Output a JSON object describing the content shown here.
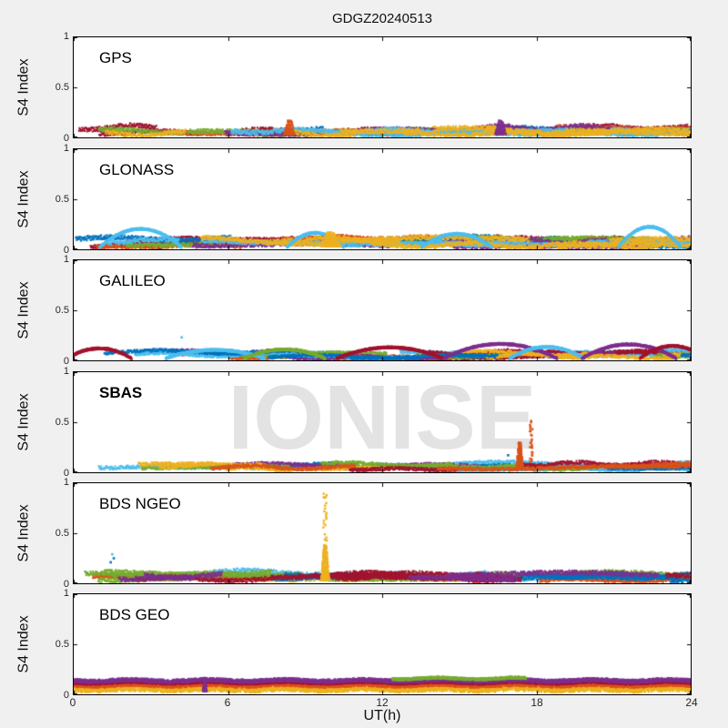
{
  "figure": {
    "title": "GDGZ20240513",
    "xlabel": "UT(h)",
    "ylabel": "S4 Index",
    "watermark": "IONISE",
    "x_ticks": [
      0,
      6,
      12,
      18,
      24
    ],
    "y_ticks": [
      0,
      0.5,
      1
    ],
    "x_tick_labels": [
      "0",
      "6",
      "12",
      "18",
      "24"
    ],
    "y_tick_labels_top_to_bottom": [
      "1",
      "0.5",
      "0"
    ],
    "colors": {
      "figure_background": "#f0f0f0",
      "plot_background": "#ffffff",
      "axis": "#000000",
      "tick_text": "#262626",
      "watermark": "#e3e3e3",
      "palette": {
        "blue": "#0072BD",
        "orange": "#D95319",
        "yellow": "#EDB120",
        "purple": "#7E2F8E",
        "green": "#77AC30",
        "cyan": "#4DBEEE",
        "maroon": "#A2142F"
      }
    }
  },
  "chart_data": [
    {
      "panel": "GPS",
      "type": "scatter",
      "xlim": [
        0,
        24
      ],
      "ylim": [
        0,
        1
      ],
      "label_bold": false,
      "description": "Dense multicolour S4 scintillation band 0.02-0.17 across all 24 h",
      "band": {
        "base": [
          0.03,
          0.1
        ],
        "jitter": 0.045,
        "colors": [
          "blue",
          "maroon",
          "orange",
          "green",
          "purple",
          "cyan",
          "yellow"
        ],
        "repeat": 3
      },
      "arcs": [],
      "spikes": [
        {
          "t": 8.4,
          "width": 0.5,
          "peak": 0.17,
          "color": "orange",
          "density": "dense",
          "n": 150
        },
        {
          "t": 16.6,
          "width": 0.5,
          "peak": 0.17,
          "color": "purple",
          "density": "dense",
          "n": 150
        }
      ],
      "points": [],
      "stripes": [],
      "seed": 11
    },
    {
      "panel": "GLONASS",
      "type": "scatter",
      "xlim": [
        0,
        24
      ],
      "ylim": [
        0,
        1
      ],
      "label_bold": false,
      "description": "Band 0.02-0.15 with light-blue satellite arcs rising to ~0.2",
      "band": {
        "base": [
          0.03,
          0.11
        ],
        "jitter": 0.045,
        "colors": [
          "maroon",
          "orange",
          "blue",
          "green",
          "purple",
          "cyan",
          "yellow"
        ],
        "repeat": 3
      },
      "arcs": [
        {
          "t": 2.6,
          "halfwidth": 1.7,
          "peak": 0.21,
          "color": "cyan"
        },
        {
          "t": 9.4,
          "halfwidth": 1.2,
          "peak": 0.17,
          "color": "cyan"
        },
        {
          "t": 14.9,
          "halfwidth": 1.5,
          "peak": 0.16,
          "color": "cyan"
        },
        {
          "t": 22.4,
          "halfwidth": 1.3,
          "peak": 0.23,
          "color": "cyan"
        }
      ],
      "spikes": [
        {
          "t": 10.0,
          "width": 0.9,
          "peak": 0.17,
          "color": "yellow",
          "density": "dense",
          "n": 300
        }
      ],
      "points": [],
      "stripes": [],
      "seed": 22
    },
    {
      "panel": "GALILEO",
      "type": "scatter",
      "xlim": [
        0,
        24
      ],
      "ylim": [
        0,
        1
      ],
      "label_bold": false,
      "description": "Thinner band 0.02-0.13 with crossing pass arcs; lone cyan point at 4.2 h / 0.23",
      "band": {
        "base": [
          0.025,
          0.09
        ],
        "jitter": 0.03,
        "colors": [
          "cyan",
          "maroon",
          "orange",
          "green",
          "purple",
          "cyan",
          "yellow",
          "blue"
        ],
        "repeat": 2
      },
      "arcs": [
        {
          "t": 1.0,
          "halfwidth": 1.4,
          "peak": 0.125,
          "color": "maroon"
        },
        {
          "t": 5.5,
          "halfwidth": 2.2,
          "peak": 0.11,
          "color": "cyan"
        },
        {
          "t": 8.2,
          "halfwidth": 1.8,
          "peak": 0.115,
          "color": "green"
        },
        {
          "t": 12.3,
          "halfwidth": 2.3,
          "peak": 0.135,
          "color": "maroon"
        },
        {
          "t": 16.6,
          "halfwidth": 2.4,
          "peak": 0.17,
          "color": "purple"
        },
        {
          "t": 18.4,
          "halfwidth": 1.6,
          "peak": 0.14,
          "color": "cyan"
        },
        {
          "t": 21.6,
          "halfwidth": 2.0,
          "peak": 0.165,
          "color": "purple"
        },
        {
          "t": 23.3,
          "halfwidth": 1.4,
          "peak": 0.15,
          "color": "maroon"
        }
      ],
      "spikes": [],
      "points": [
        {
          "t": 4.2,
          "y": 0.23,
          "color": "cyan"
        }
      ],
      "stripes": [],
      "seed": 33
    },
    {
      "panel": "SBAS",
      "type": "scatter",
      "xlim": [
        0,
        24
      ],
      "ylim": [
        0,
        1
      ],
      "label_bold": true,
      "description": "Cyan-dominated band ~0.03-0.12; orange spikes near 17.3 h (0.30) and 17.8 h (0.53)",
      "band": {
        "base": [
          0.03,
          0.085
        ],
        "jitter": 0.035,
        "colors": [
          "cyan",
          "cyan",
          "cyan",
          "blue",
          "purple",
          "green",
          "yellow",
          "maroon",
          "orange"
        ],
        "repeat": 2
      },
      "arcs": [],
      "spikes": [
        {
          "t": 17.35,
          "width": 0.3,
          "peak": 0.3,
          "color": "orange",
          "density": "dense",
          "n": 420
        },
        {
          "t": 17.8,
          "width": 0.1,
          "peak": 0.53,
          "color": "orange",
          "density": "sparse",
          "n": 26
        }
      ],
      "points": [
        {
          "t": 16.9,
          "y": 0.17,
          "color": "blue"
        }
      ],
      "stripes": [],
      "seed": 44
    },
    {
      "panel": "BDS NGEO",
      "type": "scatter",
      "xlim": [
        0,
        24
      ],
      "ylim": [
        0,
        1
      ],
      "label_bold": false,
      "description": "Band 0.02-0.15; yellow scintillation spike at 9.8 h reaching ~1.0; blue dots near 1.5 h up to 0.3",
      "band": {
        "base": [
          0.03,
          0.11
        ],
        "jitter": 0.045,
        "colors": [
          "yellow",
          "cyan",
          "orange",
          "green",
          "blue",
          "maroon",
          "purple"
        ],
        "repeat": 3
      },
      "arcs": [],
      "spikes": [
        {
          "t": 9.78,
          "width": 0.35,
          "peak": 0.38,
          "color": "yellow",
          "density": "dense",
          "n": 420
        },
        {
          "t": 9.78,
          "width": 0.14,
          "peak": 0.98,
          "color": "yellow",
          "density": "sparse",
          "n": 30
        }
      ],
      "points": [
        {
          "t": 1.5,
          "y": 0.29,
          "color": "cyan"
        },
        {
          "t": 1.56,
          "y": 0.25,
          "color": "blue"
        },
        {
          "t": 1.44,
          "y": 0.21,
          "color": "blue"
        }
      ],
      "stripes": [],
      "seed": 55
    },
    {
      "panel": "BDS GEO",
      "type": "scatter",
      "xlim": [
        0,
        24
      ],
      "ylim": [
        0,
        1
      ],
      "label_bold": false,
      "description": "Tight flat stripes: yellow ~0.055, orange ~0.095, maroon ~0.118, purple ~0.138; green stripe ~0.158 from 12.4-17.6 h",
      "band": null,
      "arcs": [],
      "spikes": [
        {
          "t": 5.1,
          "width": 0.2,
          "peak": 0.17,
          "color": "purple",
          "density": "dense",
          "n": 80
        }
      ],
      "points": [],
      "stripes": [
        {
          "y": 0.055,
          "amp": 0.028,
          "color": "yellow",
          "t0": 0,
          "t1": 24
        },
        {
          "y": 0.095,
          "amp": 0.018,
          "color": "orange",
          "t0": 0,
          "t1": 24
        },
        {
          "y": 0.118,
          "amp": 0.01,
          "color": "maroon",
          "t0": 0,
          "t1": 24
        },
        {
          "y": 0.138,
          "amp": 0.014,
          "color": "purple",
          "t0": 0,
          "t1": 24
        },
        {
          "y": 0.158,
          "amp": 0.008,
          "color": "green",
          "t0": 12.4,
          "t1": 17.6
        }
      ],
      "seed": 66
    }
  ]
}
